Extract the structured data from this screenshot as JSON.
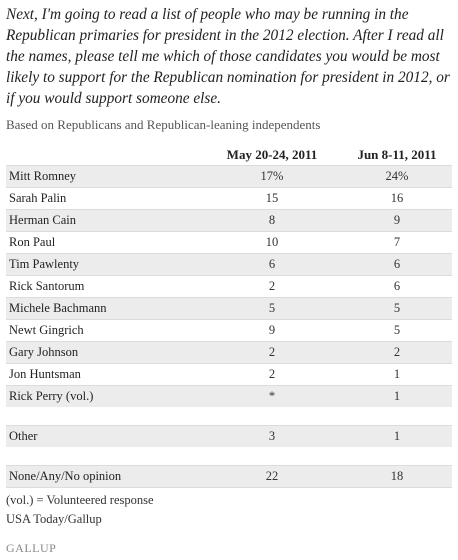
{
  "question": "Next, I'm going to read a list of people who may be running in the Republican primaries for president in the 2012 election. After I read all the names, please tell me which of those candidates you would be most likely to support for the Republican nomination for president in 2012, or if you would support someone else.",
  "basis": "Based on Republicans and Republican-leaning independents",
  "table": {
    "columns": [
      "",
      "May 20-24, 2011",
      "Jun 8-11, 2011"
    ],
    "rows": [
      {
        "name": "Mitt Romney",
        "may": "17%",
        "jun": "24%"
      },
      {
        "name": "Sarah Palin",
        "may": "15",
        "jun": "16"
      },
      {
        "name": "Herman Cain",
        "may": "8",
        "jun": "9"
      },
      {
        "name": "Ron Paul",
        "may": "10",
        "jun": "7"
      },
      {
        "name": "Tim Pawlenty",
        "may": "6",
        "jun": "6"
      },
      {
        "name": "Rick Santorum",
        "may": "2",
        "jun": "6"
      },
      {
        "name": "Michele Bachmann",
        "may": "5",
        "jun": "5"
      },
      {
        "name": "Newt Gingrich",
        "may": "9",
        "jun": "5"
      },
      {
        "name": "Gary Johnson",
        "may": "2",
        "jun": "2"
      },
      {
        "name": "Jon Huntsman",
        "may": "2",
        "jun": "1"
      },
      {
        "name": "Rick Perry (vol.)",
        "may": "*",
        "jun": "1"
      }
    ],
    "other": {
      "name": "Other",
      "may": "3",
      "jun": "1"
    },
    "none": {
      "name": "None/Any/No opinion",
      "may": "22",
      "jun": "18"
    }
  },
  "footnotes": [
    "(vol.) = Volunteered response",
    "USA Today/Gallup"
  ],
  "logo": "GALLUP"
}
